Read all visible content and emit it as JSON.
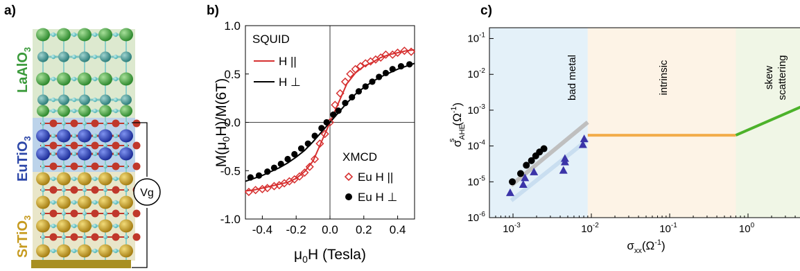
{
  "panel_a": {
    "label": "a)",
    "layers": [
      {
        "name": "LaAlO3",
        "main": "LaAlO",
        "sub": "3",
        "color": "#3a9a3a",
        "band": "#dde9cf",
        "sphere": "#4aa84a"
      },
      {
        "name": "EuTiO3",
        "main": "EuTiO",
        "sub": "3",
        "color": "#2d47a8",
        "band": "#bcd3ea",
        "sphere": "#2a44b4"
      },
      {
        "name": "SrTiO3",
        "main": "SrTiO",
        "sub": "3",
        "color": "#c69a1e",
        "band": "#e9e6c9",
        "sphere": "#c9a12a"
      }
    ],
    "gate_label": "Vg"
  },
  "panel_b": {
    "label": "b)",
    "ylabel_parts": [
      "M(μ",
      "0",
      "H)/M(6T)"
    ],
    "xlabel_parts": [
      "μ",
      "0",
      "H (Tesla)"
    ],
    "legend_squid_title": "SQUID",
    "legend_squid": [
      "H ||",
      "H ⊥"
    ],
    "legend_xmcd_title": "XMCD",
    "legend_xmcd": [
      "Eu H ||",
      "Eu H ⊥"
    ]
  },
  "panel_c": {
    "label": "c)",
    "ylabel_parts": [
      "σ",
      "AHE",
      "s",
      "(Ω",
      "-1",
      ")"
    ],
    "xlabel_parts": [
      "σ",
      "xx",
      "(Ω",
      "-1",
      ")"
    ],
    "regions": [
      {
        "name": "bad metal",
        "label": "bad metal",
        "x_from": 0.0005,
        "x_to": 0.009,
        "color": "#e4f1f9"
      },
      {
        "name": "intrinsic",
        "label": "intrinsic",
        "x_from": 0.009,
        "x_to": 0.7,
        "color": "#fdf3e6"
      },
      {
        "name": "skew-scattering",
        "label": "skew\nscattering",
        "x_from": 0.7,
        "x_to": 5,
        "color": "#f0f6e6"
      }
    ]
  },
  "colors": {
    "squid_par": "#d63030",
    "squid_perp": "#000000",
    "intrinsic_line": "#f2ac4a",
    "skew_line": "#4cb22a",
    "bad_metal_line": "#bfbfbf",
    "bad_metal_line2": "#c9def0",
    "triangles": "#3b34a8"
  },
  "chart_data": [
    {
      "type": "line",
      "xlabel": "μ0H (Tesla)",
      "ylabel": "M(μ0H)/M(6T)",
      "xlim": [
        -0.5,
        0.5
      ],
      "ylim": [
        -1.0,
        1.0
      ],
      "xticks": [
        -0.4,
        -0.2,
        0.0,
        0.2,
        0.4
      ],
      "xtick_labels": [
        "-0.4",
        "-0.2",
        "0.0",
        "0.2",
        "0.4"
      ],
      "yticks": [
        -1.0,
        -0.5,
        0.0,
        0.5,
        1.0
      ],
      "ytick_labels": [
        "-1.0",
        "-0.5",
        "0.0",
        "0.5",
        "1.0"
      ],
      "series": [
        {
          "name": "H ||",
          "kind": "line",
          "color": "#d63030",
          "x": [
            -0.5,
            -0.45,
            -0.4,
            -0.35,
            -0.3,
            -0.25,
            -0.2,
            -0.15,
            -0.1,
            -0.05,
            -0.02,
            0,
            0.02,
            0.05,
            0.1,
            0.15,
            0.2,
            0.25,
            0.3,
            0.35,
            0.4,
            0.45,
            0.5
          ],
          "y": [
            -0.71,
            -0.7,
            -0.68,
            -0.66,
            -0.64,
            -0.62,
            -0.58,
            -0.51,
            -0.4,
            -0.2,
            -0.08,
            0.0,
            0.08,
            0.2,
            0.4,
            0.51,
            0.58,
            0.62,
            0.67,
            0.7,
            0.72,
            0.74,
            0.75
          ]
        },
        {
          "name": "H ⊥",
          "kind": "line",
          "color": "#000000",
          "x": [
            -0.5,
            -0.45,
            -0.4,
            -0.35,
            -0.3,
            -0.25,
            -0.2,
            -0.15,
            -0.1,
            -0.05,
            0,
            0.05,
            0.1,
            0.15,
            0.2,
            0.25,
            0.3,
            0.35,
            0.4,
            0.45,
            0.5
          ],
          "y": [
            -0.61,
            -0.58,
            -0.55,
            -0.51,
            -0.47,
            -0.42,
            -0.36,
            -0.29,
            -0.2,
            -0.1,
            0.0,
            0.1,
            0.2,
            0.29,
            0.36,
            0.42,
            0.47,
            0.51,
            0.55,
            0.58,
            0.61
          ]
        },
        {
          "name": "Eu H ||",
          "kind": "open-diamond",
          "color": "#d63030",
          "x": [
            -0.48,
            -0.44,
            -0.4,
            -0.37,
            -0.33,
            -0.3,
            -0.27,
            -0.24,
            -0.21,
            -0.18,
            -0.15,
            -0.12,
            -0.09,
            -0.06,
            -0.03,
            0.0,
            0.03,
            0.06,
            0.09,
            0.12,
            0.15,
            0.18,
            0.21,
            0.24,
            0.27,
            0.3,
            0.33,
            0.37,
            0.4,
            0.44,
            0.48
          ],
          "y": [
            -0.72,
            -0.7,
            -0.69,
            -0.68,
            -0.66,
            -0.65,
            -0.63,
            -0.61,
            -0.59,
            -0.56,
            -0.52,
            -0.46,
            -0.38,
            -0.22,
            -0.12,
            0.0,
            0.18,
            0.3,
            0.42,
            0.5,
            0.55,
            0.58,
            0.61,
            0.63,
            0.65,
            0.67,
            0.7,
            0.7,
            0.72,
            0.74,
            0.73
          ]
        },
        {
          "name": "Eu H ⊥",
          "kind": "filled-circle",
          "color": "#000000",
          "x": [
            -0.47,
            -0.42,
            -0.37,
            -0.33,
            -0.29,
            -0.25,
            -0.21,
            -0.17,
            -0.13,
            -0.09,
            -0.05,
            -0.02,
            0.02,
            0.05,
            0.09,
            0.13,
            0.17,
            0.21,
            0.25,
            0.29,
            0.33,
            0.37,
            0.42,
            0.47
          ],
          "y": [
            -0.57,
            -0.55,
            -0.51,
            -0.47,
            -0.43,
            -0.38,
            -0.33,
            -0.27,
            -0.22,
            -0.14,
            -0.06,
            0.0,
            0.08,
            0.12,
            0.2,
            0.26,
            0.32,
            0.37,
            0.42,
            0.47,
            0.51,
            0.55,
            0.58,
            0.6
          ]
        }
      ]
    },
    {
      "type": "line",
      "xlabel": "σxx(Ω-1)",
      "ylabel": "σsAHE(Ω-1)",
      "x_scale": "log",
      "y_scale": "log",
      "xlim": [
        0.0005,
        5
      ],
      "ylim": [
        1e-06,
        0.2
      ],
      "xticks": [
        0.001,
        0.01,
        0.1,
        1
      ],
      "xtick_labels": [
        [
          "10",
          "-3"
        ],
        [
          "10",
          "-2"
        ],
        [
          "10",
          "-1"
        ],
        [
          "10",
          "0"
        ]
      ],
      "yticks": [
        1e-06,
        1e-05,
        0.0001,
        0.001,
        0.01,
        0.1
      ],
      "ytick_labels": [
        [
          "10",
          "-6"
        ],
        [
          "10",
          "-5"
        ],
        [
          "10",
          "-4"
        ],
        [
          "10",
          "-3"
        ],
        [
          "10",
          "-2"
        ],
        [
          "10",
          "-1"
        ]
      ],
      "series": [
        {
          "name": "bad metal trend",
          "kind": "line",
          "color": "#bfbfbf",
          "x": [
            0.00095,
            0.009
          ],
          "y": [
            8e-06,
            0.00046
          ]
        },
        {
          "name": "bad metal trend 2",
          "kind": "line",
          "color": "#c9def0",
          "x": [
            0.00095,
            0.009
          ],
          "y": [
            3e-06,
            0.00015
          ]
        },
        {
          "name": "intrinsic",
          "kind": "line",
          "color": "#f2ac4a",
          "x": [
            0.009,
            0.7
          ],
          "y": [
            0.0002,
            0.0002
          ]
        },
        {
          "name": "skew scattering",
          "kind": "line",
          "color": "#4cb22a",
          "x": [
            0.7,
            5
          ],
          "y": [
            0.0002,
            0.0013
          ]
        },
        {
          "name": "circles",
          "kind": "filled-circle",
          "color": "#000000",
          "x": [
            0.00098,
            0.00125,
            0.00148,
            0.00172,
            0.00195,
            0.00218,
            0.00248
          ],
          "y": [
            1e-05,
            1.7e-05,
            2.9e-05,
            3.9e-05,
            5.3e-05,
            6.8e-05,
            8.4e-05
          ]
        },
        {
          "name": "triangles",
          "kind": "filled-triangle",
          "color": "#3b34a8",
          "x": [
            0.00092,
            0.00135,
            0.00142,
            0.00185,
            0.0044,
            0.0046,
            0.0046,
            0.0078,
            0.0081
          ],
          "y": [
            5e-06,
            8.5e-06,
            1.3e-05,
            1.9e-05,
            2.1e-05,
            3.6e-05,
            4.5e-05,
            0.00011,
            0.00016
          ]
        }
      ]
    }
  ]
}
